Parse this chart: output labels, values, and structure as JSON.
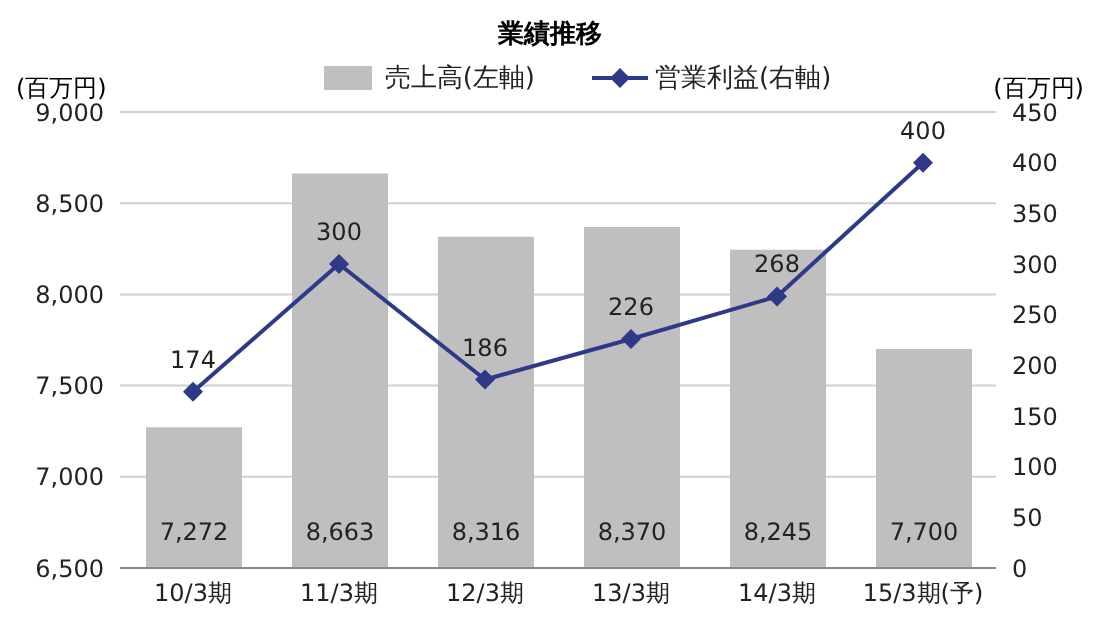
{
  "chart_data": {
    "type": "bar",
    "title": "業績推移",
    "ylabel": "(百万円)",
    "y2label": "(百万円)",
    "categories": [
      "10/3期",
      "11/3期",
      "12/3期",
      "13/3期",
      "14/3期",
      "15/3期(予)"
    ],
    "series": [
      {
        "name": "売上高(左軸)",
        "color": "#bfbfbf",
        "values": [
          7272,
          8663,
          8316,
          8370,
          8245,
          7700
        ],
        "value_labels": [
          "7,272",
          "8,663",
          "8,316",
          "8,370",
          "8,245",
          "7,700"
        ]
      },
      {
        "name": "営業利益(右軸)",
        "type": "line",
        "axis": "y2",
        "color": "#2e3a87",
        "marker": "diamond",
        "values": [
          174,
          300,
          186,
          226,
          268,
          400
        ],
        "data_labels": true
      }
    ],
    "ylim": [
      6500,
      9000
    ],
    "yticks": [
      {
        "value": 6500,
        "label": "6,500"
      },
      {
        "value": 7000,
        "label": "7,000"
      },
      {
        "value": 7500,
        "label": "7,500"
      },
      {
        "value": 8000,
        "label": "8,000"
      },
      {
        "value": 8500,
        "label": "8,500"
      },
      {
        "value": 9000,
        "label": "9,000"
      }
    ],
    "y2lim": [
      0,
      450
    ],
    "y2ticks": [
      0,
      50,
      100,
      150,
      200,
      250,
      300,
      350,
      400,
      450
    ],
    "grid": "y",
    "legend": "top"
  }
}
